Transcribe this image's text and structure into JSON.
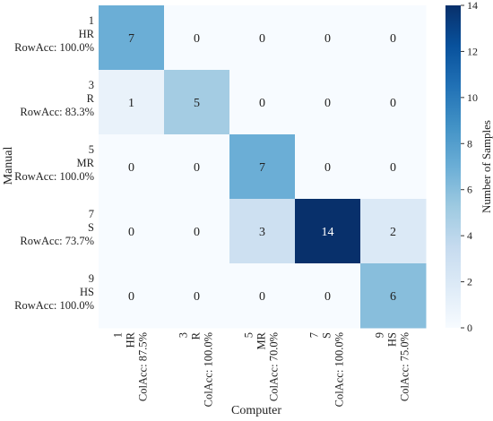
{
  "chart_data": {
    "type": "heatmap",
    "xlabel": "Computer",
    "ylabel": "Manual",
    "rows": [
      [
        "1",
        "HR",
        "RowAcc: 100.0%"
      ],
      [
        "3",
        "R",
        "RowAcc: 83.3%"
      ],
      [
        "5",
        "MR",
        "RowAcc: 100.0%"
      ],
      [
        "7",
        "S",
        "RowAcc: 73.7%"
      ],
      [
        "9",
        "HS",
        "RowAcc: 100.0%"
      ]
    ],
    "columns": [
      [
        "1",
        "HR",
        "ColAcc: 87.5%"
      ],
      [
        "3",
        "R",
        "ColAcc: 100.0%"
      ],
      [
        "5",
        "MR",
        "ColAcc: 70.0%"
      ],
      [
        "7",
        "S",
        "ColAcc: 100.0%"
      ],
      [
        "9",
        "HS",
        "ColAcc: 75.0%"
      ]
    ],
    "values": [
      [
        7,
        0,
        0,
        0,
        0
      ],
      [
        1,
        5,
        0,
        0,
        0
      ],
      [
        0,
        0,
        7,
        0,
        0
      ],
      [
        0,
        0,
        3,
        14,
        2
      ],
      [
        0,
        0,
        0,
        0,
        6
      ]
    ],
    "colorbar": {
      "label": "Number of Samples",
      "min": 0,
      "max": 14,
      "ticks": [
        0,
        2,
        4,
        6,
        8,
        10,
        12,
        14
      ]
    },
    "colormap": "Blues",
    "colors": {
      "low": "#f7fbff",
      "high": "#08306b"
    }
  }
}
